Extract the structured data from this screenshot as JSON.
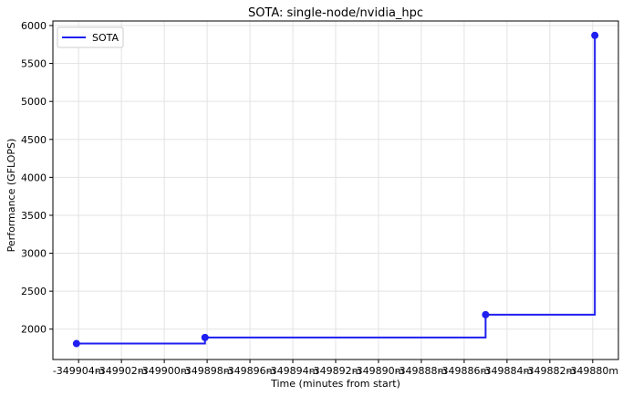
{
  "chart_data": {
    "type": "line",
    "title": "SOTA: single-node/nvidia_hpc",
    "xlabel": "Time (minutes from start)",
    "ylabel": "Performance (GFLOPS)",
    "xlim": [
      -349905.2,
      -349878.8
    ],
    "ylim": [
      1600,
      6060
    ],
    "x_ticks": [
      -349904,
      -349902,
      -349900,
      -349898,
      -349896,
      -349894,
      -349892,
      -349890,
      -349888,
      -349886,
      -349884,
      -349882,
      -349880
    ],
    "x_tick_labels": [
      "-349904m",
      "-349902m",
      "-349900m",
      "-349898m",
      "-349896m",
      "-349894m",
      "-349892m",
      "-349890m",
      "-349888m",
      "-349886m",
      "-349884m",
      "-349882m",
      "-349880m"
    ],
    "y_ticks": [
      2000,
      2500,
      3000,
      3500,
      4000,
      4500,
      5000,
      5500,
      6000
    ],
    "y_tick_labels": [
      "2000",
      "2500",
      "3000",
      "3500",
      "4000",
      "4500",
      "5000",
      "5500",
      "6000"
    ],
    "grid": true,
    "legend": {
      "position": "top-left"
    },
    "series": [
      {
        "name": "SOTA",
        "color": "#1f1ff0",
        "step": "post",
        "x": [
          -349904.1,
          -349898.1,
          -349885.0,
          -349879.9
        ],
        "y": [
          1810,
          1890,
          2190,
          5870
        ]
      }
    ]
  }
}
